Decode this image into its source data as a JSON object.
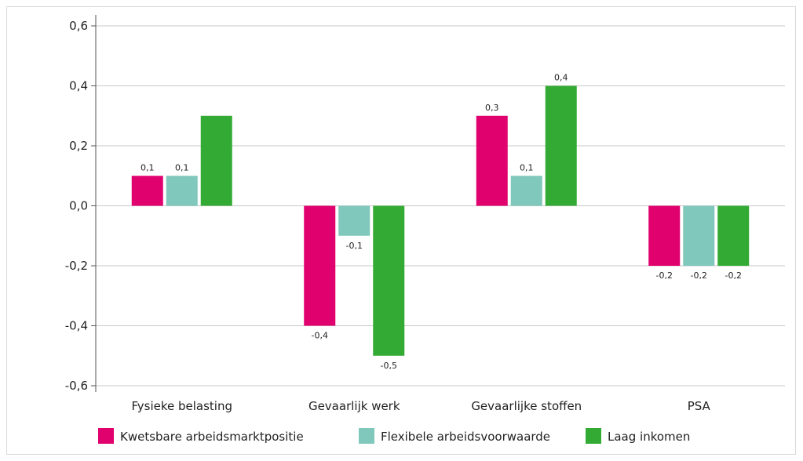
{
  "chart_data": {
    "type": "bar",
    "title": "",
    "xlabel": "",
    "ylabel": "",
    "ylim": [
      -0.6,
      0.6
    ],
    "yticks": [
      0.6,
      0.4,
      0.2,
      0.0,
      -0.2,
      -0.4,
      -0.6
    ],
    "ytick_labels": [
      "0,6",
      "0,4",
      "0,2",
      "0,0",
      "-0,2",
      "-0,4",
      "-0,6"
    ],
    "grid": true,
    "legend_position": "bottom",
    "categories": [
      "Fysieke belasting",
      "Gevaarlijk werk",
      "Gevaarlijke stoffen",
      "PSA"
    ],
    "series": [
      {
        "name": "Kwetsbare arbeidsmarktpositie",
        "color": "#e0006e",
        "values": [
          0.1,
          -0.4,
          0.3,
          -0.2
        ],
        "labels": [
          "0,1",
          "-0,4",
          "0,3",
          "-0,2"
        ]
      },
      {
        "name": "Flexibele arbeidsvoorwaarde",
        "color": "#80c7bc",
        "values": [
          0.1,
          -0.1,
          0.1,
          -0.2
        ],
        "labels": [
          "0,1",
          "-0,1",
          "0,1",
          "-0,2"
        ]
      },
      {
        "name": "Laag inkomen",
        "color": "#33aa33",
        "values": [
          0.3,
          -0.5,
          0.4,
          -0.2
        ],
        "labels": [
          "",
          "-0,5",
          "0,4",
          "-0,2"
        ]
      }
    ]
  }
}
